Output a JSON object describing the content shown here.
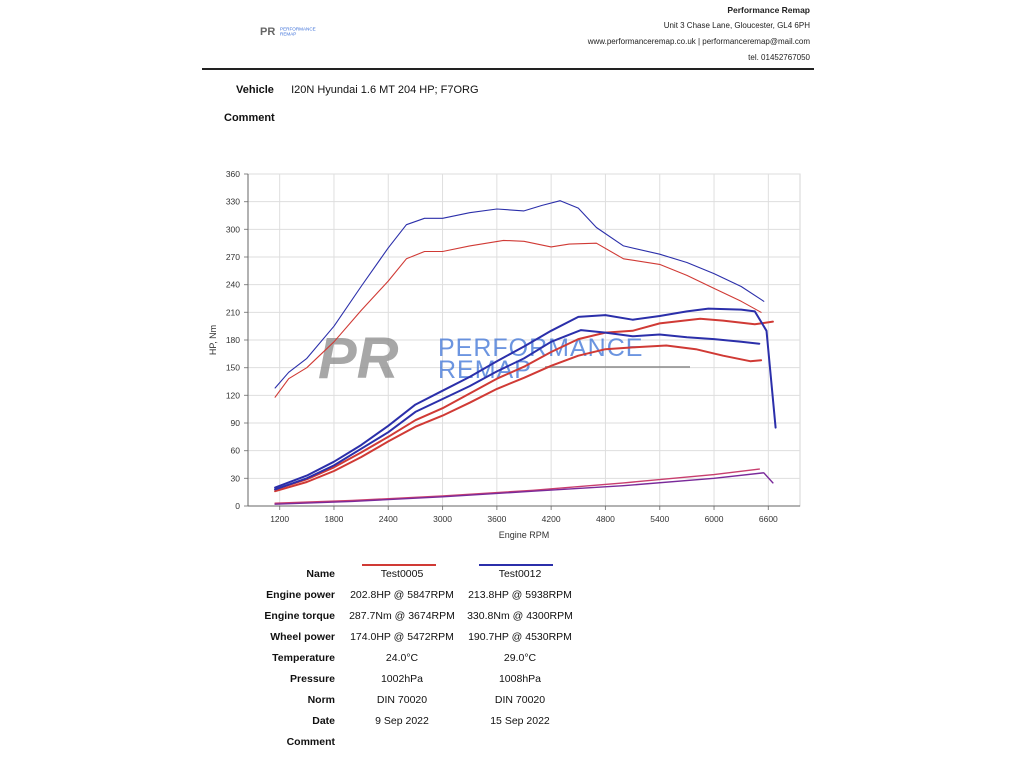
{
  "header": {
    "logo_text": "PERFORMANCE REMAP",
    "company_name": "Performance Remap",
    "address": "Unit 3 Chase Lane, Gloucester, GL4 6PH",
    "web_email": "www.performanceremap.co.uk | performanceremap@mail.com",
    "phone": "tel. 01452767050"
  },
  "vehicle": {
    "label": "Vehicle",
    "value": "I20N Hyundai 1.6 MT 204 HP; F7ORG"
  },
  "comment": {
    "label": "Comment"
  },
  "watermark": {
    "line1": "PERFORMANCE",
    "line2": "REMAP",
    "letters": "PR"
  },
  "colors": {
    "test0005": "#d03a35",
    "test0012": "#2b2faa",
    "loss": "#8a2f8f"
  },
  "chart_data": {
    "type": "line",
    "xlabel": "Engine RPM",
    "ylabel": "HP, Nm",
    "xlim": [
      850,
      6950
    ],
    "ylim": [
      0,
      360
    ],
    "xticks": [
      1200,
      1800,
      2400,
      3000,
      3600,
      4200,
      4800,
      5400,
      6000,
      6600
    ],
    "yticks": [
      0,
      30,
      60,
      90,
      120,
      150,
      180,
      210,
      240,
      270,
      300,
      330,
      360
    ],
    "grid": true,
    "series": [
      {
        "name": "Test0005",
        "metric": "Engine torque",
        "color": "#d03a35",
        "x": [
          1150,
          1300,
          1500,
          1800,
          2100,
          2400,
          2600,
          2800,
          3000,
          3300,
          3674,
          3900,
          4200,
          4400,
          4700,
          5000,
          5400,
          5700,
          6000,
          6300,
          6520
        ],
        "y": [
          118,
          138,
          150,
          178,
          212,
          244,
          268,
          276,
          276,
          282,
          288,
          287,
          281,
          284,
          285,
          268,
          262,
          250,
          236,
          222,
          210
        ]
      },
      {
        "name": "Test0012",
        "metric": "Engine torque",
        "color": "#2b2faa",
        "x": [
          1150,
          1300,
          1500,
          1800,
          2100,
          2400,
          2600,
          2800,
          3000,
          3300,
          3600,
          3900,
          4100,
          4300,
          4500,
          4700,
          5000,
          5400,
          5700,
          6000,
          6300,
          6550
        ],
        "y": [
          128,
          145,
          160,
          195,
          238,
          280,
          305,
          312,
          312,
          318,
          322,
          320,
          326,
          331,
          323,
          302,
          282,
          273,
          264,
          252,
          238,
          222
        ]
      },
      {
        "name": "Test0005",
        "metric": "Engine power",
        "color": "#d03a35",
        "x": [
          1150,
          1500,
          1800,
          2100,
          2400,
          2700,
          3000,
          3300,
          3600,
          3900,
          4200,
          4500,
          4800,
          5100,
          5400,
          5847,
          6100,
          6450,
          6650
        ],
        "y": [
          18,
          29,
          42,
          58,
          75,
          93,
          106,
          122,
          138,
          151,
          167,
          181,
          188,
          190,
          198,
          203,
          201,
          197,
          200
        ]
      },
      {
        "name": "Test0012",
        "metric": "Engine power",
        "color": "#2b2faa",
        "x": [
          1150,
          1500,
          1800,
          2100,
          2400,
          2700,
          3000,
          3300,
          3600,
          3900,
          4200,
          4500,
          4800,
          5100,
          5400,
          5700,
          5938,
          6300,
          6450,
          6580,
          6680
        ],
        "y": [
          20,
          33,
          48,
          66,
          87,
          110,
          125,
          140,
          157,
          173,
          190,
          205,
          207,
          202,
          206,
          211,
          214,
          213,
          211,
          190,
          85
        ]
      },
      {
        "name": "Test0005",
        "metric": "Wheel power",
        "color": "#d03a35",
        "x": [
          1150,
          1500,
          1800,
          2100,
          2400,
          2700,
          3000,
          3300,
          3600,
          3900,
          4200,
          4500,
          4800,
          5100,
          5472,
          5800,
          6100,
          6400,
          6520
        ],
        "y": [
          16,
          26,
          38,
          53,
          70,
          86,
          98,
          112,
          127,
          139,
          152,
          163,
          170,
          172,
          174,
          170,
          163,
          157,
          158
        ]
      },
      {
        "name": "Test0012",
        "metric": "Wheel power",
        "color": "#2b2faa",
        "x": [
          1150,
          1500,
          1800,
          2100,
          2400,
          2700,
          3000,
          3300,
          3600,
          3900,
          4200,
          4530,
          4800,
          5100,
          5400,
          5700,
          6000,
          6300,
          6500
        ],
        "y": [
          18,
          30,
          44,
          62,
          80,
          102,
          116,
          130,
          146,
          160,
          178,
          190.7,
          188,
          184,
          186,
          183,
          181,
          178,
          176
        ]
      },
      {
        "name": "Test0005",
        "metric": "Loss power",
        "color": "#c83e6e",
        "x": [
          1150,
          2000,
          3000,
          4000,
          5000,
          6000,
          6500
        ],
        "y": [
          3,
          6,
          11,
          17,
          25,
          34,
          40
        ]
      },
      {
        "name": "Test0012",
        "metric": "Loss power",
        "color": "#7a2a9a",
        "x": [
          1150,
          2000,
          3000,
          4000,
          5000,
          6000,
          6550,
          6650
        ],
        "y": [
          2,
          5,
          10,
          16,
          22,
          30,
          36,
          25
        ]
      }
    ]
  },
  "results": {
    "rows": [
      {
        "label": "Name",
        "v1": "Test0005",
        "v2": "Test0012"
      },
      {
        "label": "Engine power",
        "v1": "202.8HP @ 5847RPM",
        "v2": "213.8HP @ 5938RPM"
      },
      {
        "label": "Engine torque",
        "v1": "287.7Nm @ 3674RPM",
        "v2": "330.8Nm @ 4300RPM"
      },
      {
        "label": "Wheel power",
        "v1": "174.0HP @ 5472RPM",
        "v2": "190.7HP @ 4530RPM"
      },
      {
        "label": "Temperature",
        "v1": "24.0°C",
        "v2": "29.0°C"
      },
      {
        "label": "Pressure",
        "v1": "1002hPa",
        "v2": "1008hPa"
      },
      {
        "label": "Norm",
        "v1": "DIN 70020",
        "v2": "DIN 70020"
      },
      {
        "label": "Date",
        "v1": "9 Sep 2022",
        "v2": "15 Sep 2022"
      },
      {
        "label": "Comment",
        "v1": "",
        "v2": ""
      }
    ]
  }
}
